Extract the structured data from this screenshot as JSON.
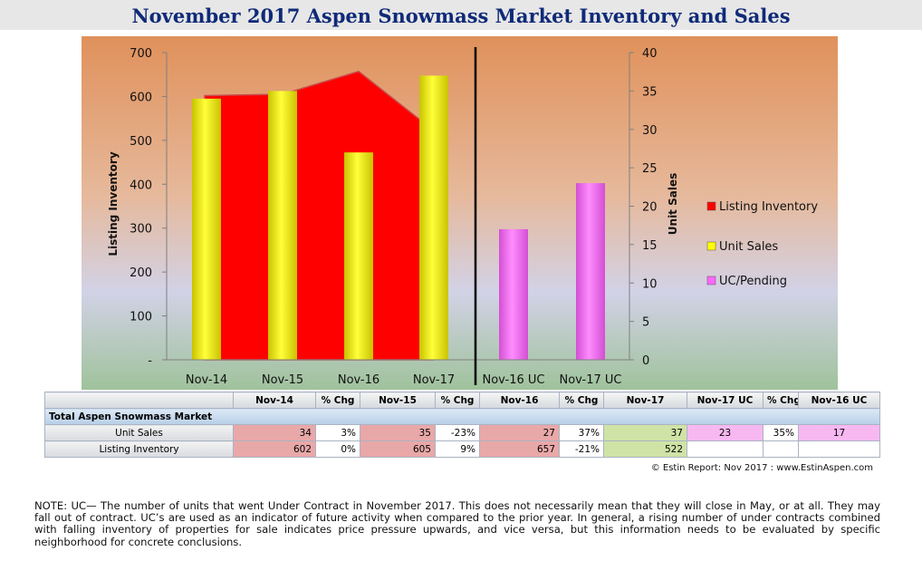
{
  "title": "November 2017 Aspen Snowmass Market Inventory and Sales",
  "chart_data": {
    "type": "bar",
    "categories": [
      "Nov-14",
      "Nov-15",
      "Nov-16",
      "Nov-17",
      "Nov-16 UC",
      "Nov-17 UC"
    ],
    "series": [
      {
        "name": "Listing Inventory",
        "kind": "area",
        "axis": "left",
        "values": [
          602,
          605,
          657,
          522,
          null,
          null
        ],
        "color": "#ff0000"
      },
      {
        "name": "Unit Sales",
        "kind": "bar",
        "axis": "right",
        "values": [
          34,
          35,
          27,
          37,
          null,
          null
        ],
        "color": "#ffff00"
      },
      {
        "name": "UC/Pending",
        "kind": "bar",
        "axis": "right",
        "values": [
          null,
          null,
          null,
          null,
          17,
          23
        ],
        "color": "#ff66ff"
      }
    ],
    "ylabel": "Listing Inventory",
    "y2label": "Unit Sales",
    "ylim": [
      0,
      700
    ],
    "y2lim": [
      0,
      40
    ],
    "yticks": [
      "-",
      "100",
      "200",
      "300",
      "400",
      "500",
      "600",
      "700"
    ],
    "y2ticks": [
      "0",
      "5",
      "10",
      "15",
      "20",
      "25",
      "30",
      "35",
      "40"
    ],
    "legend_position": "right"
  },
  "table": {
    "headers": [
      "",
      "Nov-14",
      "% Chg",
      "Nov-15",
      "% Chg",
      "Nov-16",
      "% Chg",
      "Nov-17",
      "Nov-17 UC",
      "% Chg",
      "Nov-16 UC"
    ],
    "section": "Total Aspen Snowmass Market",
    "rows": [
      {
        "label": "Unit Sales",
        "cells": [
          "34",
          "3%",
          "35",
          "-23%",
          "27",
          "37%",
          "37",
          "23",
          "35%",
          "17"
        ]
      },
      {
        "label": "Listing Inventory",
        "cells": [
          "602",
          "0%",
          "605",
          "9%",
          "657",
          "-21%",
          "522",
          "",
          "",
          ""
        ]
      }
    ]
  },
  "credit": "© Estin Report: Nov 2017 : www.EstinAspen.com",
  "note": "NOTE: UC— The number of units that went Under Contract in November 2017. This does not necessarily mean that they will close in May, or at all. They may fall out of contract. UC’s are used as an indicator of future activity when compared to the prior year. In general, a rising number of under contracts combined with falling inventory of properties for sale indicates price pressure upwards, and vice versa, but this information needs to be evaluated by specific neighborhood for concrete conclusions."
}
